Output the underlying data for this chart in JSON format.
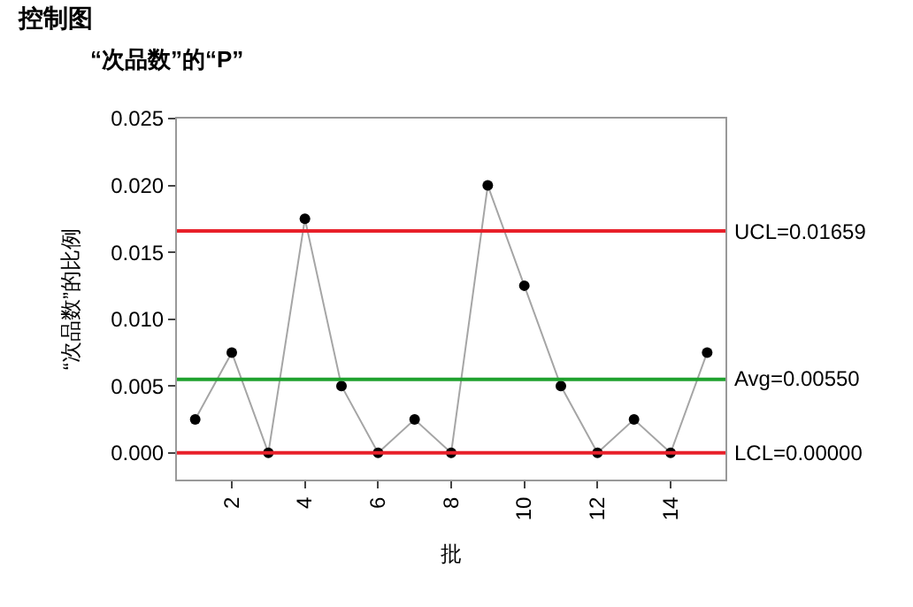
{
  "chart_data": {
    "type": "line",
    "title": "控制图",
    "subtitle": "“次品数”的“P”",
    "xlabel": "批",
    "ylabel": "“次品数”的比例",
    "x": [
      1,
      2,
      3,
      4,
      5,
      6,
      7,
      8,
      9,
      10,
      11,
      12,
      13,
      14,
      15
    ],
    "series": [
      {
        "color": "#000000",
        "values": [
          0.0025,
          0.0075,
          0.0,
          0.0175,
          0.005,
          0.0,
          0.0025,
          0.0,
          0.02,
          0.0125,
          0.005,
          0.0,
          0.0025,
          0.0,
          0.0075
        ]
      }
    ],
    "xlim": [
      0.5,
      15.5
    ],
    "xticks": [
      2,
      4,
      6,
      8,
      10,
      12,
      14
    ],
    "ylim": [
      -0.002,
      0.025
    ],
    "yticks": [
      {
        "value": 0,
        "label": "0.000"
      },
      {
        "value": 0.005,
        "label": "0.005"
      },
      {
        "value": 0.01,
        "label": "0.010"
      },
      {
        "value": 0.015,
        "label": "0.015"
      },
      {
        "value": 0.02,
        "label": "0.020"
      },
      {
        "value": 0.025,
        "label": "0.025"
      }
    ],
    "ref_lines": [
      {
        "axis": "y",
        "value": 0.01659,
        "label": "UCL=0.01659",
        "color": "#e8202a"
      },
      {
        "axis": "y",
        "value": 0.0055,
        "label": "Avg=0.00550",
        "color": "#1fa12e"
      },
      {
        "axis": "y",
        "value": 0.0,
        "label": "LCL=0.00000",
        "color": "#e8202a"
      }
    ],
    "marker": "circle",
    "line_style": "solid"
  }
}
